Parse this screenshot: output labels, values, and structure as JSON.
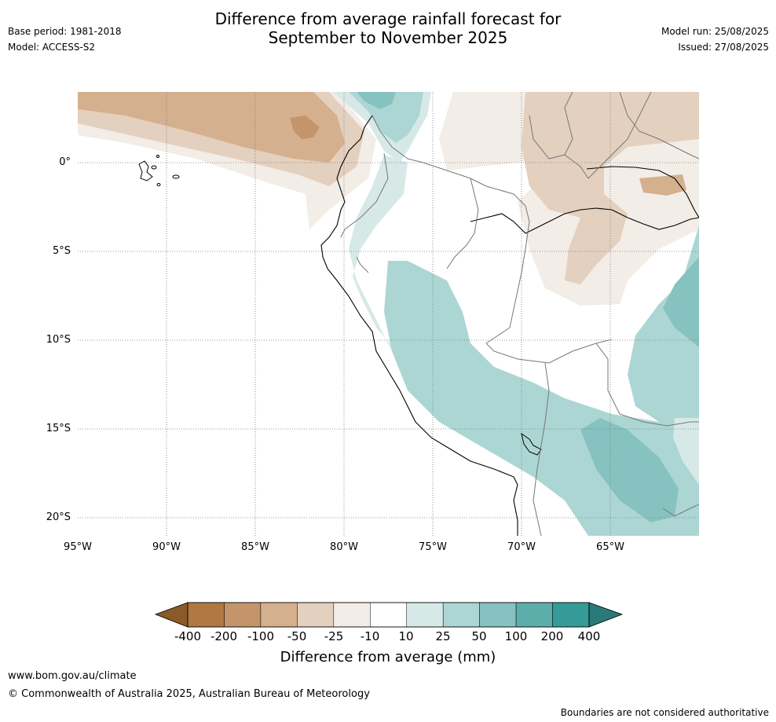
{
  "header": {
    "title_line1": "Difference from average rainfall forecast for",
    "title_line2": "September to November 2025",
    "base_period": "Base period: 1981-2018",
    "model": "Model: ACCESS-S2",
    "model_run": "Model run: 25/08/2025",
    "issued": "Issued: 27/08/2025"
  },
  "map": {
    "lat_labels": [
      "0°",
      "5°S",
      "10°S",
      "15°S",
      "20°S"
    ],
    "lon_labels": [
      "95°W",
      "90°W",
      "85°W",
      "80°W",
      "75°W",
      "70°W",
      "65°W"
    ],
    "extent": {
      "lon": [
        -95,
        -60
      ],
      "lat": [
        -21,
        4
      ]
    }
  },
  "colorbar": {
    "ticks": [
      "-400",
      "-200",
      "-100",
      "-50",
      "-25",
      "-10",
      "10",
      "25",
      "50",
      "100",
      "200",
      "400"
    ],
    "colors": [
      "#8c5a28",
      "#b07843",
      "#c4956a",
      "#d4b08e",
      "#e4d0be",
      "#f3ede7",
      "#ffffff",
      "#d6e9e7",
      "#acd6d4",
      "#86c2bf",
      "#5daeab",
      "#349b98",
      "#2a7a78"
    ],
    "label": "Difference from average (mm)"
  },
  "footer": {
    "url": "www.bom.gov.au/climate",
    "copyright": "© Commonwealth of Australia 2025, Australian Bureau of Meteorology",
    "note": "Boundaries are not considered authoritative"
  }
}
